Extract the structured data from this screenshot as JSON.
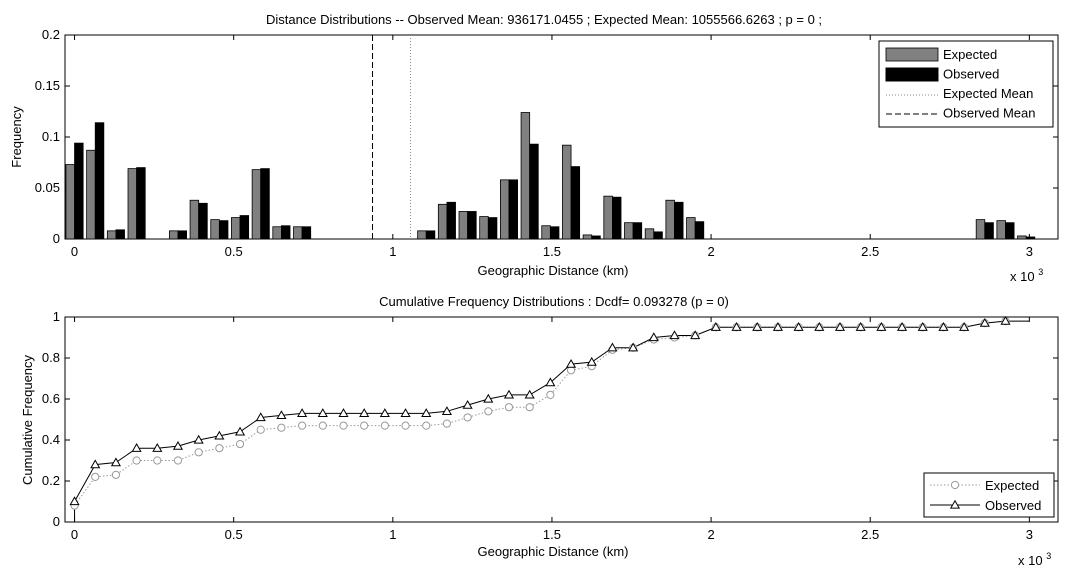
{
  "chart_data": [
    {
      "type": "bar",
      "title": "Distance Distributions -- Observed Mean: 936171.0455 ; Expected Mean: 1055566.6263 ; p = 0 ;",
      "xlabel": "Geographic Distance (km)",
      "ylabel": "Frequency",
      "x_multiplier_label": "x 10",
      "x_multiplier_exp": "3",
      "xlim": [
        -0.03,
        3.09
      ],
      "ylim": [
        0,
        0.2
      ],
      "xticks": [
        0,
        0.5,
        1,
        1.5,
        2,
        2.5,
        3
      ],
      "xtick_labels": [
        "0",
        "0.5",
        "1",
        "1.5",
        "2",
        "2.5",
        "3"
      ],
      "yticks": [
        0,
        0.05,
        0.1,
        0.15,
        0.2
      ],
      "ytick_labels": [
        "0",
        "0.05",
        "0.1",
        "0.15",
        "0.2"
      ],
      "x": [
        0,
        0.065,
        0.13,
        0.195,
        0.325,
        0.39,
        0.455,
        0.52,
        0.585,
        0.65,
        0.715,
        1.105,
        1.17,
        1.235,
        1.3,
        1.365,
        1.43,
        1.495,
        1.56,
        1.625,
        1.69,
        1.755,
        1.82,
        1.885,
        1.95,
        2.86,
        2.925,
        2.99,
        3.055
      ],
      "series": [
        {
          "name": "Expected",
          "color": "#808080",
          "values": [
            0.073,
            0.087,
            0.008,
            0.069,
            0.008,
            0.038,
            0.019,
            0.021,
            0.068,
            0.012,
            0.012,
            0.008,
            0.034,
            0.027,
            0.022,
            0.058,
            0.124,
            0.013,
            0.092,
            0.004,
            0.042,
            0.016,
            0.01,
            0.038,
            0.021,
            0.019,
            0.018,
            0.003,
            0.0
          ]
        },
        {
          "name": "Observed",
          "color": "#000000",
          "values": [
            0.094,
            0.114,
            0.009,
            0.07,
            0.008,
            0.035,
            0.018,
            0.023,
            0.069,
            0.013,
            0.012,
            0.008,
            0.036,
            0.027,
            0.021,
            0.058,
            0.093,
            0.012,
            0.071,
            0.003,
            0.041,
            0.016,
            0.007,
            0.036,
            0.017,
            0.016,
            0.016,
            0.002,
            0.0
          ]
        }
      ],
      "expected_mean": 1.0556,
      "observed_mean": 0.9362,
      "legend": {
        "position": "top-right",
        "entries": [
          "Expected",
          "Observed",
          "Expected Mean",
          "Observed Mean"
        ]
      }
    },
    {
      "type": "line",
      "title": "Cumulative Frequency Distributions : Dcdf= 0.093278 (p = 0)",
      "xlabel": "Geographic Distance (km)",
      "ylabel": "Cumulative Frequency",
      "x_multiplier_label": "x 10",
      "x_multiplier_exp": "3",
      "xlim": [
        -0.03,
        3.09
      ],
      "ylim": [
        0,
        1
      ],
      "xticks": [
        0,
        0.5,
        1,
        1.5,
        2,
        2.5,
        3
      ],
      "xtick_labels": [
        "0",
        "0.5",
        "1",
        "1.5",
        "2",
        "2.5",
        "3"
      ],
      "yticks": [
        0,
        0.2,
        0.4,
        0.6,
        0.8,
        1
      ],
      "ytick_labels": [
        "0",
        "0.2",
        "0.4",
        "0.6",
        "0.8",
        "1"
      ],
      "x": [
        0,
        0.065,
        0.13,
        0.195,
        0.26,
        0.325,
        0.39,
        0.455,
        0.52,
        0.585,
        0.65,
        0.715,
        0.78,
        0.845,
        0.91,
        0.975,
        1.04,
        1.105,
        1.17,
        1.235,
        1.3,
        1.365,
        1.43,
        1.495,
        1.56,
        1.625,
        1.69,
        1.755,
        1.82,
        1.885,
        1.95,
        2.015,
        2.08,
        2.145,
        2.21,
        2.275,
        2.34,
        2.405,
        2.47,
        2.535,
        2.6,
        2.665,
        2.73,
        2.795,
        2.86,
        2.925
      ],
      "series": [
        {
          "name": "Expected",
          "color": "#808080",
          "line": "dotted",
          "marker": "circle",
          "values": [
            0.08,
            0.22,
            0.23,
            0.3,
            0.3,
            0.3,
            0.34,
            0.36,
            0.38,
            0.45,
            0.46,
            0.47,
            0.47,
            0.47,
            0.47,
            0.47,
            0.47,
            0.47,
            0.48,
            0.51,
            0.54,
            0.56,
            0.56,
            0.62,
            0.74,
            0.76,
            0.84,
            0.85,
            0.89,
            0.9,
            0.91,
            0.95,
            0.95,
            0.95,
            0.95,
            0.95,
            0.95,
            0.95,
            0.95,
            0.95,
            0.95,
            0.95,
            0.95,
            0.95,
            0.97,
            0.98
          ]
        },
        {
          "name": "Observed",
          "color": "#000000",
          "line": "solid",
          "marker": "triangle",
          "values": [
            0.1,
            0.28,
            0.29,
            0.36,
            0.36,
            0.37,
            0.4,
            0.42,
            0.44,
            0.51,
            0.52,
            0.53,
            0.53,
            0.53,
            0.53,
            0.53,
            0.53,
            0.53,
            0.54,
            0.57,
            0.6,
            0.62,
            0.62,
            0.68,
            0.77,
            0.78,
            0.85,
            0.85,
            0.9,
            0.91,
            0.91,
            0.95,
            0.95,
            0.95,
            0.95,
            0.95,
            0.95,
            0.95,
            0.95,
            0.95,
            0.95,
            0.95,
            0.95,
            0.95,
            0.97,
            0.98
          ]
        }
      ],
      "legend": {
        "position": "bottom-right",
        "entries": [
          "Expected",
          "Observed"
        ]
      }
    }
  ]
}
